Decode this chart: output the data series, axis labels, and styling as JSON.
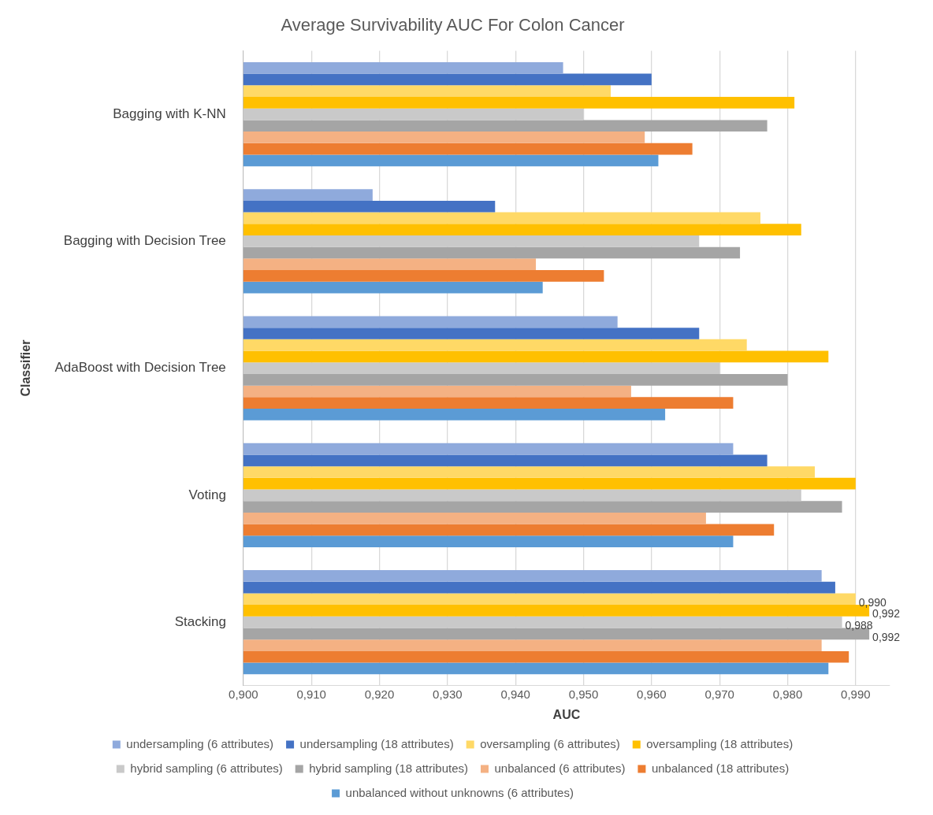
{
  "chart_data": {
    "type": "bar",
    "orientation": "horizontal",
    "title": "Average Survivability AUC For Colon Cancer",
    "xlabel": "AUC",
    "ylabel": "Classifier",
    "categories": [
      "Bagging with K-NN",
      "Bagging with Decision Tree",
      "AdaBoost with Decision Tree",
      "Voting",
      "Stacking"
    ],
    "xlim": [
      0.9,
      0.995
    ],
    "xticks": [
      {
        "value": 0.9,
        "label": "0,900"
      },
      {
        "value": 0.91,
        "label": "0,910"
      },
      {
        "value": 0.92,
        "label": "0,920"
      },
      {
        "value": 0.93,
        "label": "0,930"
      },
      {
        "value": 0.94,
        "label": "0,940"
      },
      {
        "value": 0.95,
        "label": "0,950"
      },
      {
        "value": 0.96,
        "label": "0,960"
      },
      {
        "value": 0.97,
        "label": "0,970"
      },
      {
        "value": 0.98,
        "label": "0,980"
      },
      {
        "value": 0.99,
        "label": "0,990"
      }
    ],
    "grid": "x",
    "legend": "bottom",
    "series": [
      {
        "name": "undersampling (6 attributes)",
        "color": "#8faadc",
        "values": [
          0.947,
          0.919,
          0.955,
          0.972,
          0.985
        ]
      },
      {
        "name": "undersampling (18 attributes)",
        "color": "#4472c4",
        "values": [
          0.96,
          0.937,
          0.967,
          0.977,
          0.987
        ]
      },
      {
        "name": "oversampling (6 attributes)",
        "color": "#ffd966",
        "values": [
          0.954,
          0.976,
          0.974,
          0.984,
          0.99
        ],
        "value_labels": [
          null,
          null,
          null,
          null,
          "0,990"
        ]
      },
      {
        "name": "oversampling (18 attributes)",
        "color": "#ffc000",
        "values": [
          0.981,
          0.982,
          0.986,
          0.99,
          0.992
        ],
        "value_labels": [
          null,
          null,
          null,
          null,
          "0,992"
        ]
      },
      {
        "name": "hybrid sampling (6 attributes)",
        "color": "#c9c9c9",
        "values": [
          0.95,
          0.967,
          0.97,
          0.982,
          0.988
        ],
        "value_labels": [
          null,
          null,
          null,
          null,
          "0,988"
        ]
      },
      {
        "name": "hybrid sampling (18 attributes)",
        "color": "#a5a5a5",
        "values": [
          0.977,
          0.973,
          0.98,
          0.988,
          0.992
        ],
        "value_labels": [
          null,
          null,
          null,
          null,
          "0,992"
        ]
      },
      {
        "name": "unbalanced (6 attributes)",
        "color": "#f4b183",
        "values": [
          0.959,
          0.943,
          0.957,
          0.968,
          0.985
        ]
      },
      {
        "name": "unbalanced (18 attributes)",
        "color": "#ed7d31",
        "values": [
          0.966,
          0.953,
          0.972,
          0.978,
          0.989
        ]
      },
      {
        "name": "unbalanced without unknowns (6 attributes)",
        "color": "#5b9bd5",
        "values": [
          0.961,
          0.944,
          0.962,
          0.972,
          0.986
        ]
      }
    ]
  }
}
